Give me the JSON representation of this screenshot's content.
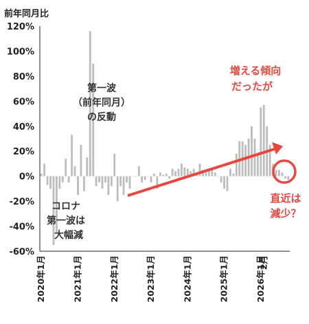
{
  "chart_data": {
    "type": "bar",
    "unit_label": "前年同月比",
    "ylim": [
      -60,
      120
    ],
    "yticks": [
      "120%",
      "100%",
      "80%",
      "60%",
      "40%",
      "20%",
      "0%",
      "-20%",
      "-40%",
      "-60%"
    ],
    "xtick_labels": [
      "2020年1月",
      "2021年1月",
      "2022年1月",
      "2023年1月",
      "2024年1月",
      "2025年1月",
      "2026年1月",
      "2月"
    ],
    "start_month": "2020-01",
    "values": [
      2,
      10,
      -7,
      -10,
      -55,
      -45,
      -10,
      -5,
      14,
      -5,
      33,
      8,
      -15,
      25,
      -12,
      15,
      116,
      90,
      -8,
      -5,
      -10,
      -5,
      -15,
      -8,
      18,
      -20,
      -8,
      -15,
      -5,
      -10,
      0,
      0,
      8,
      -5,
      -3,
      0,
      -5,
      2,
      -10,
      3,
      1,
      2,
      -2,
      6,
      4,
      6,
      10,
      7,
      6,
      4,
      6,
      2,
      10,
      5,
      3,
      5,
      6,
      3,
      0,
      -5,
      -10,
      -12,
      6,
      2,
      18,
      28,
      28,
      25,
      30,
      40,
      30,
      18,
      55,
      57,
      40,
      25,
      10,
      5,
      5,
      3,
      -2,
      -3
    ],
    "bar_color": "#bdbdbd",
    "grid": false,
    "annotations": {
      "covid_line1": "コロナ",
      "covid_line2": "第一波は",
      "covid_line3": "大幅減",
      "rebound_line1": "第一波",
      "rebound_line2": "（前年同月）",
      "rebound_line3": "の反動",
      "trend_line1": "増える傾向",
      "trend_line2": "だったが",
      "recent_line1": "直近は",
      "recent_line2": "減少？"
    },
    "accent_color": "#e8473e"
  }
}
